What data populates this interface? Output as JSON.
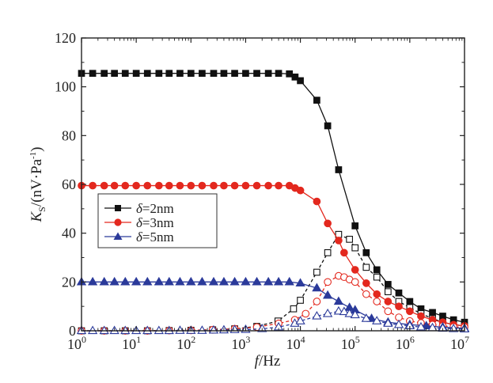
{
  "chart_data": {
    "type": "line",
    "xscale": "log",
    "xlim": [
      1,
      10000000
    ],
    "ylim": [
      0,
      120
    ],
    "xlabel": {
      "main": "f",
      "unit": "/Hz"
    },
    "ylabel": {
      "sym": "K",
      "sub": "S",
      "unit": "/(nV·Pa",
      "unit_sup": "-1",
      "close": ")"
    },
    "xticks": [
      {
        "base": "10",
        "exp": "0",
        "value": 1
      },
      {
        "base": "10",
        "exp": "1",
        "value": 10
      },
      {
        "base": "10",
        "exp": "2",
        "value": 100
      },
      {
        "base": "10",
        "exp": "3",
        "value": 1000
      },
      {
        "base": "10",
        "exp": "4",
        "value": 10000
      },
      {
        "base": "10",
        "exp": "5",
        "value": 100000
      },
      {
        "base": "10",
        "exp": "6",
        "value": 1000000
      },
      {
        "base": "10",
        "exp": "7",
        "value": 10000000
      }
    ],
    "yticks": [
      "0",
      "20",
      "40",
      "60",
      "80",
      "100",
      "120"
    ],
    "legend": [
      {
        "prefix": "δ",
        "label": "=2nm",
        "color": "#111111",
        "marker": "square"
      },
      {
        "prefix": "δ",
        "label": "=3nm",
        "color": "#e3281e",
        "marker": "circle"
      },
      {
        "prefix": "δ",
        "label": "=5nm",
        "color": "#2b3a9a",
        "marker": "triangle"
      }
    ],
    "series": [
      {
        "name": "δ=2nm (filled)",
        "color": "#111111",
        "marker": "square",
        "filled": true,
        "dashed": false,
        "points": [
          [
            1,
            105.5
          ],
          [
            1.6,
            105.5
          ],
          [
            2.6,
            105.5
          ],
          [
            4,
            105.5
          ],
          [
            6.3,
            105.5
          ],
          [
            10,
            105.5
          ],
          [
            16,
            105.5
          ],
          [
            26,
            105.5
          ],
          [
            40,
            105.5
          ],
          [
            63,
            105.5
          ],
          [
            100,
            105.5
          ],
          [
            160,
            105.5
          ],
          [
            260,
            105.5
          ],
          [
            400,
            105.5
          ],
          [
            630,
            105.5
          ],
          [
            1000,
            105.5
          ],
          [
            1600,
            105.5
          ],
          [
            2600,
            105.5
          ],
          [
            4000,
            105.5
          ],
          [
            6300,
            105.3
          ],
          [
            8000,
            104
          ],
          [
            10000,
            102.5
          ],
          [
            20000,
            94.5
          ],
          [
            31600,
            84
          ],
          [
            50000,
            66
          ],
          [
            100000,
            43
          ],
          [
            160000,
            32
          ],
          [
            250000,
            25
          ],
          [
            400000,
            19
          ],
          [
            630000,
            15.5
          ],
          [
            1000000,
            12
          ],
          [
            1600000,
            9
          ],
          [
            2600000,
            7.5
          ],
          [
            4000000,
            6
          ],
          [
            6300000,
            4.5
          ],
          [
            10000000,
            3.5
          ]
        ]
      },
      {
        "name": "δ=2nm (open)",
        "color": "#111111",
        "marker": "square",
        "filled": false,
        "dashed": true,
        "points": [
          [
            1,
            0
          ],
          [
            2.6,
            0
          ],
          [
            6.3,
            0
          ],
          [
            16,
            0
          ],
          [
            40,
            0.1
          ],
          [
            100,
            0.2
          ],
          [
            250,
            0.4
          ],
          [
            630,
            0.8
          ],
          [
            1600,
            1.8
          ],
          [
            3900,
            4
          ],
          [
            7500,
            9
          ],
          [
            10000,
            12.5
          ],
          [
            20000,
            24
          ],
          [
            31600,
            32
          ],
          [
            50000,
            39.5
          ],
          [
            79000,
            37.5
          ],
          [
            100000,
            34
          ],
          [
            160000,
            26
          ],
          [
            250000,
            22
          ],
          [
            400000,
            16
          ],
          [
            630000,
            12
          ],
          [
            1000000,
            9.5
          ],
          [
            1600000,
            7
          ],
          [
            2600000,
            5
          ],
          [
            4000000,
            3.5
          ],
          [
            6300000,
            2.5
          ],
          [
            10000000,
            2
          ]
        ]
      },
      {
        "name": "δ=3nm (filled)",
        "color": "#e3281e",
        "marker": "circle",
        "filled": true,
        "dashed": false,
        "points": [
          [
            1,
            59.5
          ],
          [
            1.6,
            59.5
          ],
          [
            2.6,
            59.5
          ],
          [
            4,
            59.5
          ],
          [
            6.3,
            59.5
          ],
          [
            10,
            59.5
          ],
          [
            16,
            59.5
          ],
          [
            26,
            59.5
          ],
          [
            40,
            59.5
          ],
          [
            63,
            59.5
          ],
          [
            100,
            59.5
          ],
          [
            160,
            59.5
          ],
          [
            260,
            59.5
          ],
          [
            400,
            59.5
          ],
          [
            630,
            59.5
          ],
          [
            1000,
            59.5
          ],
          [
            1600,
            59.5
          ],
          [
            2600,
            59.5
          ],
          [
            4000,
            59.5
          ],
          [
            6300,
            59.5
          ],
          [
            8000,
            58.5
          ],
          [
            10000,
            57.5
          ],
          [
            20000,
            53
          ],
          [
            31600,
            44
          ],
          [
            50000,
            37
          ],
          [
            63000,
            32
          ],
          [
            100000,
            25
          ],
          [
            160000,
            19.5
          ],
          [
            250000,
            15
          ],
          [
            400000,
            12
          ],
          [
            630000,
            10
          ],
          [
            1000000,
            8
          ],
          [
            1600000,
            6
          ],
          [
            2600000,
            4.5
          ],
          [
            4000000,
            3.5
          ],
          [
            6300000,
            2.5
          ],
          [
            10000000,
            2
          ]
        ]
      },
      {
        "name": "δ=3nm (open)",
        "color": "#e3281e",
        "marker": "circle",
        "filled": false,
        "dashed": true,
        "points": [
          [
            1,
            0
          ],
          [
            2.6,
            0
          ],
          [
            6.3,
            0
          ],
          [
            16,
            0
          ],
          [
            40,
            0.1
          ],
          [
            100,
            0.2
          ],
          [
            250,
            0.4
          ],
          [
            630,
            0.8
          ],
          [
            1600,
            1.5
          ],
          [
            4000,
            3
          ],
          [
            7900,
            4.5
          ],
          [
            12500,
            7
          ],
          [
            20000,
            12
          ],
          [
            31600,
            20
          ],
          [
            50000,
            22.5
          ],
          [
            63000,
            22
          ],
          [
            79000,
            21
          ],
          [
            100000,
            20
          ],
          [
            160000,
            15
          ],
          [
            250000,
            12
          ],
          [
            400000,
            8
          ],
          [
            630000,
            5.5
          ],
          [
            1000000,
            4
          ],
          [
            1600000,
            3.2
          ],
          [
            2600000,
            2.5
          ],
          [
            4000000,
            2
          ],
          [
            6300000,
            1.6
          ],
          [
            10000000,
            1.5
          ]
        ]
      },
      {
        "name": "δ=5nm (filled)",
        "color": "#2b3a9a",
        "marker": "triangle",
        "filled": true,
        "dashed": false,
        "points": [
          [
            1,
            20
          ],
          [
            1.6,
            20
          ],
          [
            2.6,
            20
          ],
          [
            4,
            20
          ],
          [
            6.3,
            20
          ],
          [
            10,
            20
          ],
          [
            16,
            20
          ],
          [
            26,
            20
          ],
          [
            40,
            20
          ],
          [
            63,
            20
          ],
          [
            100,
            20
          ],
          [
            160,
            20
          ],
          [
            260,
            20
          ],
          [
            400,
            20
          ],
          [
            630,
            20
          ],
          [
            1000,
            20
          ],
          [
            1600,
            20
          ],
          [
            2600,
            20
          ],
          [
            4000,
            20
          ],
          [
            6300,
            20
          ],
          [
            10000,
            19.5
          ],
          [
            20000,
            17.5
          ],
          [
            31600,
            14.5
          ],
          [
            50000,
            12
          ],
          [
            79000,
            9.5
          ],
          [
            100000,
            8.5
          ],
          [
            200000,
            5
          ],
          [
            400000,
            3.5
          ],
          [
            1000000,
            2.5
          ],
          [
            2000000,
            2
          ],
          [
            4000000,
            1.5
          ],
          [
            10000000,
            1
          ]
        ]
      },
      {
        "name": "δ=5nm (open)",
        "color": "#2b3a9a",
        "marker": "triangle",
        "filled": false,
        "dashed": true,
        "points": [
          [
            1,
            0
          ],
          [
            1.6,
            0
          ],
          [
            2.6,
            0
          ],
          [
            4,
            0
          ],
          [
            6.3,
            0
          ],
          [
            10,
            0
          ],
          [
            16,
            0
          ],
          [
            26,
            0
          ],
          [
            40,
            0
          ],
          [
            63,
            0.1
          ],
          [
            100,
            0.1
          ],
          [
            160,
            0.1
          ],
          [
            260,
            0.2
          ],
          [
            400,
            0.3
          ],
          [
            630,
            0.4
          ],
          [
            1000,
            0.5
          ],
          [
            2000,
            0.8
          ],
          [
            4000,
            1.5
          ],
          [
            7900,
            3
          ],
          [
            10000,
            4
          ],
          [
            20000,
            6
          ],
          [
            31600,
            7
          ],
          [
            50000,
            8
          ],
          [
            63000,
            7.8
          ],
          [
            79000,
            7
          ],
          [
            100000,
            6.5
          ],
          [
            160000,
            5
          ],
          [
            250000,
            4
          ],
          [
            400000,
            3
          ],
          [
            630000,
            2.5
          ],
          [
            1000000,
            2
          ],
          [
            1600000,
            1.5
          ],
          [
            2600000,
            1.2
          ],
          [
            4000000,
            1
          ],
          [
            6300000,
            0.8
          ],
          [
            10000000,
            0.7
          ]
        ]
      }
    ]
  }
}
